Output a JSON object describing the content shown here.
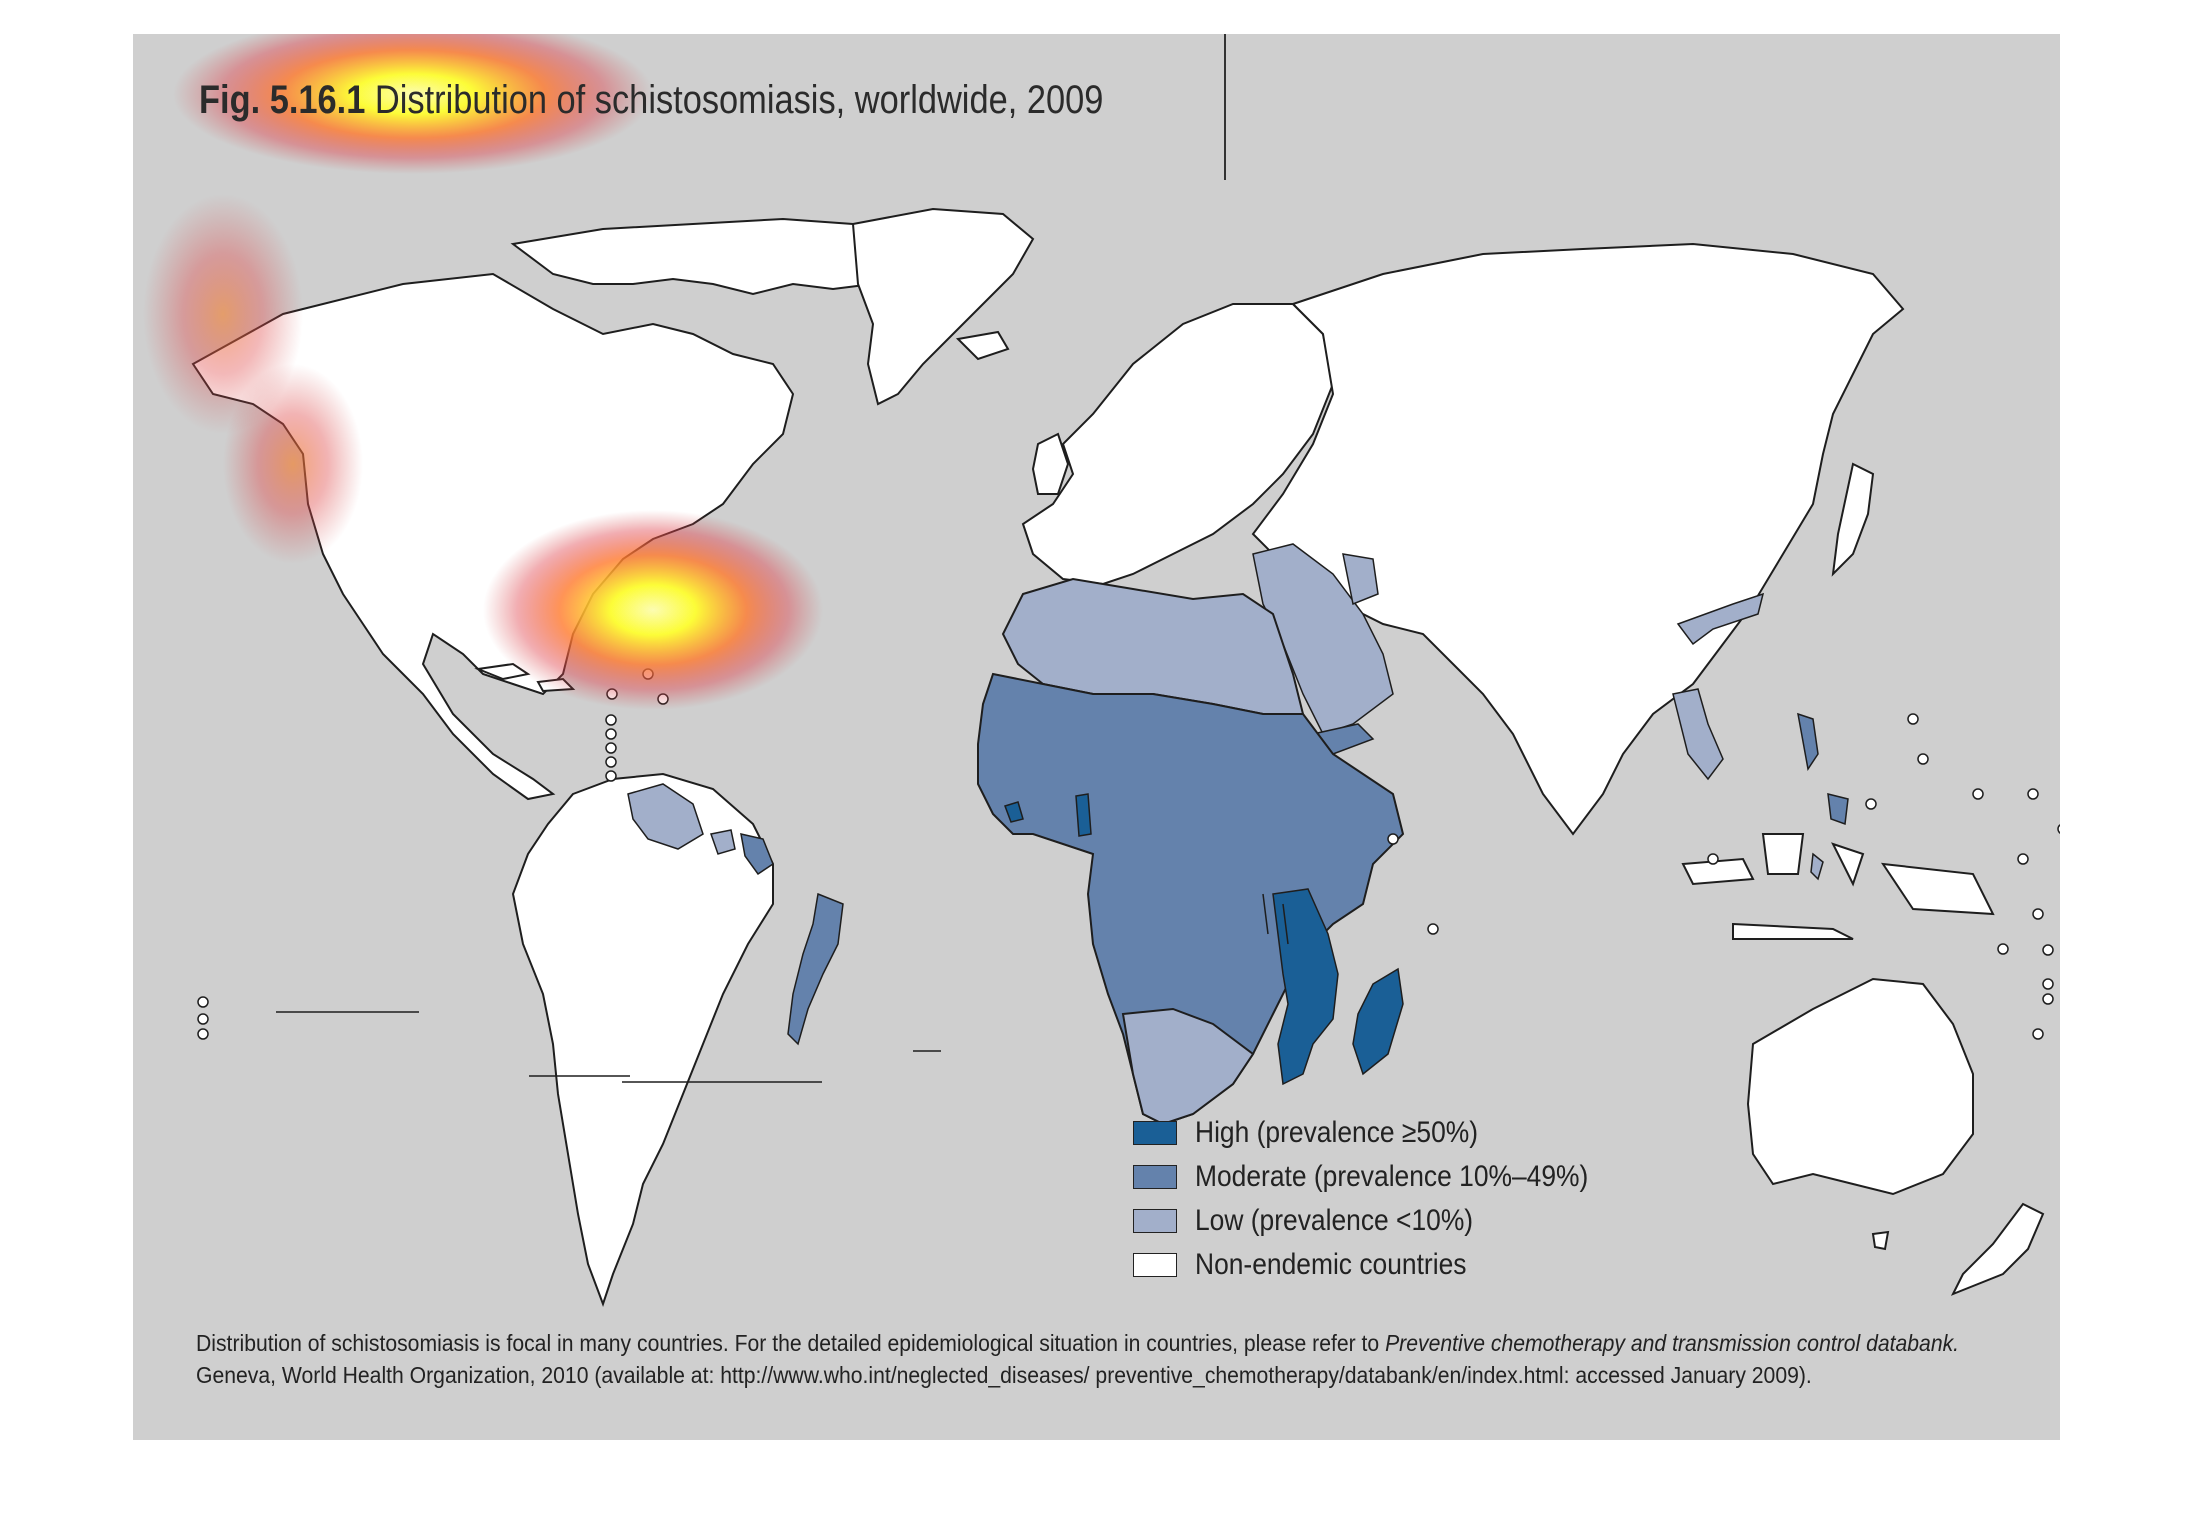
{
  "figure": {
    "number": "Fig. 5.16.1",
    "title": "Distribution of schistosomiasis, worldwide, 2009"
  },
  "colors": {
    "background": "#cfcfcf",
    "high": "#1a5f96",
    "moderate": "#6482ac",
    "low": "#a2afca",
    "non_endemic": "#ffffff",
    "border": "#1e1e1e"
  },
  "legend": [
    {
      "key": "high",
      "label": "High (prevalence ≥50%)"
    },
    {
      "key": "moderate",
      "label": "Moderate (prevalence 10%–49%)"
    },
    {
      "key": "low",
      "label": "Low (prevalence <10%)"
    },
    {
      "key": "non_endemic",
      "label": "Non-endemic countries"
    }
  ],
  "regions": [
    {
      "name": "Africa (sub-Saharan)",
      "category": "moderate"
    },
    {
      "name": "North Africa / Middle East",
      "category": "low"
    },
    {
      "name": "Ghana",
      "category": "high"
    },
    {
      "name": "Sierra Leone",
      "category": "high"
    },
    {
      "name": "Mozambique / Malawi / Tanzania",
      "category": "high"
    },
    {
      "name": "Madagascar",
      "category": "high"
    },
    {
      "name": "Brazil (east coast)",
      "category": "moderate"
    },
    {
      "name": "Venezuela",
      "category": "low"
    },
    {
      "name": "Suriname",
      "category": "low"
    },
    {
      "name": "China (Yangtze)",
      "category": "low"
    },
    {
      "name": "Philippines",
      "category": "moderate"
    },
    {
      "name": "Laos / Cambodia",
      "category": "low"
    },
    {
      "name": "Indonesia (Sulawesi)",
      "category": "low"
    }
  ],
  "footnote": {
    "line1_plain": "Distribution of schistosomiasis is focal in many countries. For the detailed epidemiological situation in countries, please refer to ",
    "line1_italic": "Preventive chemotherapy and transmission control databank.",
    "line2": "Geneva, World Health Organization, 2010 (available at: http://www.who.int/neglected_diseases/ preventive_chemotherapy/databank/en/index.html: accessed January 2009)."
  }
}
